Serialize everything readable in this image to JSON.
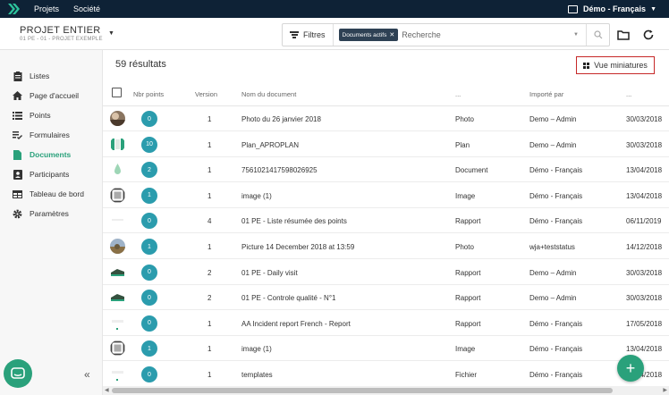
{
  "topnav": {
    "nav": [
      "Projets",
      "Société"
    ],
    "user": "Démo - Français"
  },
  "project": {
    "title": "PROJET ENTIER",
    "subtitle": "01 PE - 01 - PROJET EXEMPLE"
  },
  "search": {
    "filters_label": "Filtres",
    "chip": "Documents actifs",
    "placeholder": "Recherche"
  },
  "sidebar": {
    "items": [
      {
        "label": "Listes",
        "icon": "clipboard-icon"
      },
      {
        "label": "Page d'accueil",
        "icon": "home-icon"
      },
      {
        "label": "Points",
        "icon": "list-icon"
      },
      {
        "label": "Formulaires",
        "icon": "checklist-icon"
      },
      {
        "label": "Documents",
        "icon": "document-icon",
        "active": true
      },
      {
        "label": "Participants",
        "icon": "contacts-icon"
      },
      {
        "label": "Tableau de bord",
        "icon": "table-icon"
      },
      {
        "label": "Paramètres",
        "icon": "gear-icon"
      }
    ],
    "collapse": "«"
  },
  "main": {
    "results": "59 résultats",
    "view_button": "Vue miniatures",
    "columns": [
      "Nbr points",
      "Version",
      "Nom du document",
      "...",
      "Importé par",
      "..."
    ],
    "rows": [
      {
        "points": "0",
        "version": "1",
        "name": "Photo du 26 janvier 2018",
        "type": "Photo",
        "by": "Demo – Admin",
        "date": "30/03/2018",
        "thumb": "photo"
      },
      {
        "points": "10",
        "version": "1",
        "name": "Plan_APROPLAN",
        "type": "Plan",
        "by": "Demo – Admin",
        "date": "30/03/2018",
        "thumb": "plan"
      },
      {
        "points": "2",
        "version": "1",
        "name": "7561021417598026925",
        "type": "Document",
        "by": "Démo - Français",
        "date": "13/04/2018",
        "thumb": "drop"
      },
      {
        "points": "1",
        "version": "1",
        "name": "image (1)",
        "type": "Image",
        "by": "Démo - Français",
        "date": "13/04/2018",
        "thumb": "image"
      },
      {
        "points": "0",
        "version": "4",
        "name": "01 PE - Liste résumée des points",
        "type": "Rapport",
        "by": "Démo - Français",
        "date": "06/11/2019",
        "thumb": "blank"
      },
      {
        "points": "1",
        "version": "1",
        "name": "Picture 14 December 2018 at 13:59",
        "type": "Photo",
        "by": "wja+teststatus",
        "date": "14/12/2018",
        "thumb": "photo2"
      },
      {
        "points": "0",
        "version": "2",
        "name": "01 PE - Daily visit",
        "type": "Rapport",
        "by": "Demo – Admin",
        "date": "30/03/2018",
        "thumb": "report"
      },
      {
        "points": "0",
        "version": "2",
        "name": "01 PE - Controle qualité - N°1",
        "type": "Rapport",
        "by": "Demo – Admin",
        "date": "30/03/2018",
        "thumb": "report"
      },
      {
        "points": "0",
        "version": "1",
        "name": "AA Incident report French - Report",
        "type": "Rapport",
        "by": "Démo - Français",
        "date": "17/05/2018",
        "thumb": "blank2"
      },
      {
        "points": "1",
        "version": "1",
        "name": "image (1)",
        "type": "Image",
        "by": "Démo - Français",
        "date": "13/04/2018",
        "thumb": "image"
      },
      {
        "points": "0",
        "version": "1",
        "name": "templates",
        "type": "Fichier",
        "by": "Démo - Français",
        "date": "13/04/2018",
        "thumb": "blank2"
      }
    ]
  },
  "fab": "+"
}
